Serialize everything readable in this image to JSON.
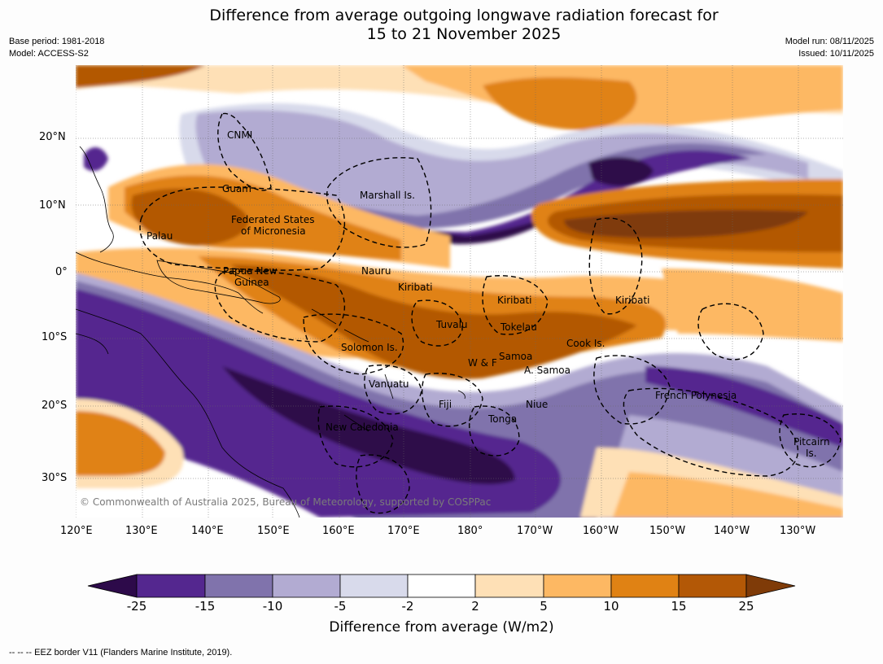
{
  "title": {
    "line1": "Difference from average outgoing longwave radiation forecast for",
    "line2": "15 to 21 November 2025"
  },
  "meta": {
    "base_period": "Base period: 1981-2018",
    "model": "Model: ACCESS-S2",
    "model_run": "Model run: 08/11/2025",
    "issued": "Issued: 10/11/2025"
  },
  "axes": {
    "lat_ticks": [
      "20°N",
      "10°N",
      "0°",
      "10°S",
      "20°S",
      "30°S"
    ],
    "lon_ticks": [
      "120°E",
      "130°E",
      "140°E",
      "150°E",
      "160°E",
      "170°E",
      "180°",
      "170°W",
      "160°W",
      "150°W",
      "140°W",
      "130°W"
    ]
  },
  "places": {
    "cnmi": "CNMI",
    "guam": "Guam",
    "marshall": "Marshall Is.",
    "fsm1": "Federated States",
    "fsm2": "of Micronesia",
    "palau": "Palau",
    "png1": "Papua New",
    "png2": "Guinea",
    "nauru": "Nauru",
    "kiribati_w": "Kiribati",
    "kiribati_c": "Kiribati",
    "kiribati_e": "Kiribati",
    "tuvalu": "Tuvalu",
    "tokelau": "Tokelau",
    "cook": "Cook Is.",
    "solomon": "Solomon Is.",
    "wallis": "W & F",
    "samoa": "Samoa",
    "asamoa": "A. Samoa",
    "vanuatu": "Vanuatu",
    "fiji": "Fiji",
    "niue": "Niue",
    "tonga": "Tonga",
    "frpoly": "French Polynesia",
    "newcal": "New Caledonia",
    "pitcairn1": "Pitcairn",
    "pitcairn2": "Is."
  },
  "copyright": "© Commonwealth of Australia 2025, Bureau of Meteorology, supported by COSPPac",
  "colorbar": {
    "ticks": [
      "-25",
      "-15",
      "-10",
      "-5",
      "-2",
      "2",
      "5",
      "10",
      "15",
      "25"
    ],
    "colors": [
      "#2d0a4a",
      "#54278f",
      "#8073ac",
      "#b2abd2",
      "#d8daeb",
      "#ffffff",
      "#fee0b6",
      "#fdb863",
      "#e08214",
      "#b35806",
      "#7f3b08"
    ],
    "label": "Difference from average (W/m2)"
  },
  "footer": "--  --  -- EEZ border V11 (Flanders Marine Institute, 2019)."
}
